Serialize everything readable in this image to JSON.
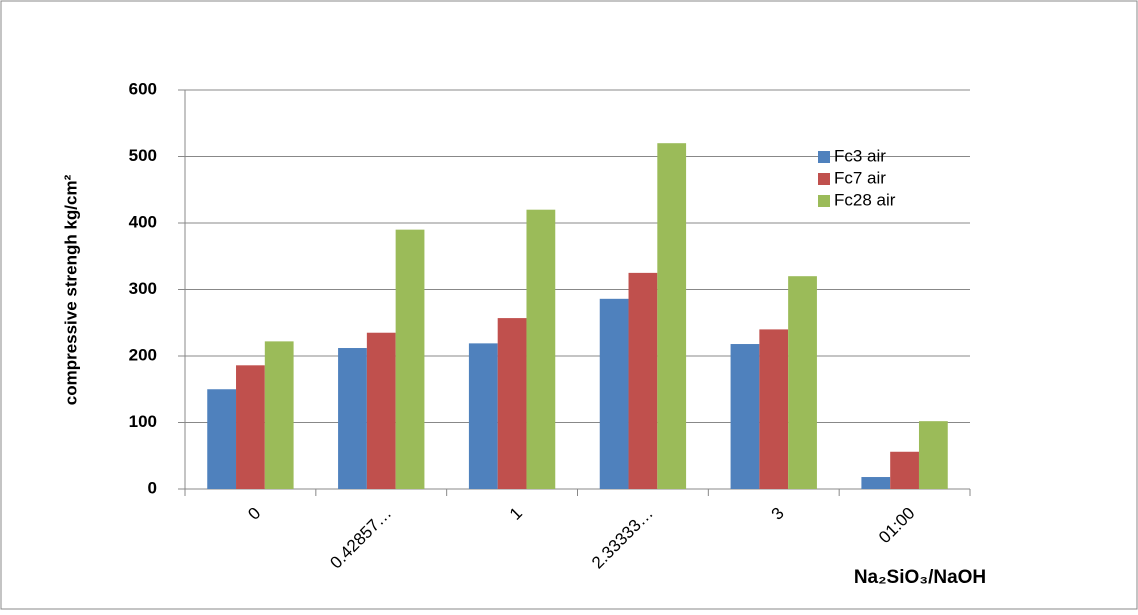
{
  "chart_data": {
    "type": "bar",
    "categories": [
      "0",
      "0.42857…",
      "1",
      "2.33333…",
      "3",
      "01:00"
    ],
    "series": [
      {
        "name": "Fc3 air",
        "color": "#4f81bd",
        "values": [
          150,
          212,
          219,
          286,
          218,
          18
        ]
      },
      {
        "name": "Fc7 air",
        "color": "#c0504d",
        "values": [
          186,
          235,
          257,
          325,
          240,
          56
        ]
      },
      {
        "name": "Fc28 air",
        "color": "#9bbb59",
        "values": [
          222,
          390,
          420,
          520,
          320,
          102
        ]
      }
    ],
    "y_label": "compressive strengh kg/cm²",
    "x_label": "Na₂SiO₃/NaOH",
    "ylim": [
      0,
      600
    ],
    "yticks": [
      0,
      100,
      200,
      300,
      400,
      500,
      600
    ],
    "grid": true,
    "legend": "upper right"
  }
}
